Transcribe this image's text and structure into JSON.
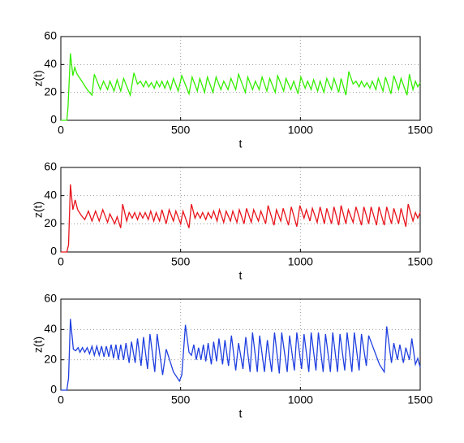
{
  "chart_data": [
    {
      "type": "line",
      "xlabel": "t",
      "ylabel": "z(t)",
      "xlim": [
        0,
        1500
      ],
      "ylim": [
        0,
        60
      ],
      "xticks": [
        0,
        500,
        1000,
        1500
      ],
      "yticks": [
        0,
        20,
        40,
        60
      ],
      "grid": true,
      "color": "#33ee00",
      "x": [
        0,
        25,
        30,
        40,
        50,
        58,
        68,
        80,
        95,
        110,
        130,
        140,
        165,
        178,
        195,
        205,
        222,
        235,
        250,
        262,
        290,
        305,
        320,
        332,
        345,
        355,
        367,
        378,
        390,
        400,
        412,
        422,
        434,
        445,
        458,
        470,
        490,
        505,
        535,
        548,
        570,
        580,
        600,
        612,
        635,
        648,
        668,
        680,
        698,
        710,
        730,
        742,
        770,
        780,
        800,
        812,
        828,
        840,
        860,
        872,
        895,
        905,
        930,
        940,
        960,
        972,
        990,
        1002,
        1020,
        1030,
        1045,
        1055,
        1072,
        1082,
        1098,
        1110,
        1130,
        1140,
        1160,
        1170,
        1190,
        1202,
        1220,
        1232,
        1245,
        1255,
        1267,
        1278,
        1290,
        1300,
        1315,
        1325,
        1345,
        1355,
        1378,
        1390,
        1410,
        1420,
        1445,
        1455,
        1470,
        1480,
        1490,
        1500
      ],
      "values": [
        0,
        0,
        10,
        48,
        32,
        38,
        33,
        30,
        26,
        22,
        18,
        33,
        22,
        28,
        22,
        28,
        21,
        29,
        21,
        30,
        18,
        34,
        26,
        28,
        24,
        28,
        24,
        27,
        23,
        28,
        24,
        28,
        23,
        28,
        22,
        30,
        21,
        32,
        19,
        31,
        21,
        30,
        20,
        31,
        20,
        31,
        22,
        28,
        22,
        30,
        22,
        33,
        20,
        31,
        22,
        28,
        22,
        31,
        21,
        30,
        20,
        32,
        21,
        30,
        22,
        28,
        19,
        31,
        23,
        28,
        22,
        29,
        21,
        28,
        20,
        30,
        22,
        30,
        20,
        30,
        18,
        35,
        26,
        28,
        24,
        28,
        24,
        27,
        23,
        28,
        22,
        30,
        21,
        31,
        19,
        32,
        22,
        30,
        18,
        33,
        22,
        28,
        24,
        27
      ]
    },
    {
      "type": "line",
      "xlabel": "t",
      "ylabel": "z(t)",
      "xlim": [
        0,
        1500
      ],
      "ylim": [
        0,
        60
      ],
      "xticks": [
        0,
        500,
        1000,
        1500
      ],
      "yticks": [
        0,
        20,
        40,
        60
      ],
      "grid": true,
      "color": "#e8141b",
      "x": [
        0,
        25,
        32,
        40,
        50,
        60,
        70,
        85,
        100,
        115,
        130,
        145,
        160,
        175,
        195,
        205,
        225,
        235,
        250,
        258,
        275,
        285,
        298,
        308,
        320,
        330,
        342,
        352,
        365,
        375,
        388,
        398,
        412,
        422,
        440,
        452,
        470,
        480,
        500,
        510,
        535,
        545,
        560,
        570,
        582,
        592,
        605,
        615,
        628,
        638,
        652,
        662,
        680,
        690,
        708,
        718,
        735,
        745,
        765,
        775,
        795,
        805,
        825,
        835,
        855,
        865,
        890,
        900,
        918,
        928,
        950,
        962,
        985,
        998,
        1015,
        1025,
        1040,
        1050,
        1070,
        1082,
        1100,
        1110,
        1130,
        1140,
        1160,
        1170,
        1190,
        1200,
        1220,
        1232,
        1255,
        1265,
        1285,
        1295,
        1318,
        1328,
        1350,
        1360,
        1380,
        1390,
        1410,
        1420,
        1440,
        1450,
        1470,
        1480,
        1490,
        1500
      ],
      "values": [
        0,
        0,
        5,
        48,
        30,
        37,
        30,
        26,
        23,
        29,
        22,
        29,
        22,
        30,
        21,
        27,
        20,
        25,
        17,
        34,
        22,
        28,
        24,
        28,
        23,
        28,
        24,
        28,
        23,
        29,
        22,
        28,
        22,
        30,
        20,
        30,
        22,
        29,
        20,
        29,
        17,
        34,
        24,
        28,
        24,
        28,
        23,
        28,
        24,
        29,
        22,
        30,
        21,
        29,
        22,
        29,
        21,
        30,
        20,
        31,
        21,
        30,
        22,
        29,
        20,
        33,
        19,
        30,
        22,
        31,
        19,
        32,
        18,
        33,
        24,
        30,
        22,
        31,
        21,
        32,
        20,
        31,
        20,
        32,
        19,
        33,
        20,
        30,
        21,
        32,
        19,
        32,
        20,
        32,
        19,
        32,
        19,
        32,
        20,
        31,
        20,
        31,
        18,
        34,
        22,
        28,
        24,
        28
      ]
    },
    {
      "type": "line",
      "xlabel": "t",
      "ylabel": "z(t)",
      "xlim": [
        0,
        1500
      ],
      "ylim": [
        0,
        60
      ],
      "xticks": [
        0,
        500,
        1000,
        1500
      ],
      "yticks": [
        0,
        20,
        40,
        60
      ],
      "grid": true,
      "color": "#1f3fe0",
      "x": [
        0,
        25,
        32,
        40,
        52,
        62,
        72,
        80,
        90,
        100,
        110,
        120,
        130,
        140,
        150,
        160,
        170,
        180,
        190,
        200,
        210,
        220,
        230,
        240,
        250,
        262,
        272,
        285,
        295,
        310,
        320,
        335,
        345,
        362,
        372,
        392,
        402,
        425,
        440,
        470,
        495,
        505,
        520,
        535,
        545,
        555,
        565,
        575,
        585,
        595,
        605,
        615,
        628,
        638,
        650,
        660,
        675,
        685,
        700,
        712,
        730,
        742,
        760,
        772,
        790,
        800,
        820,
        830,
        850,
        862,
        880,
        892,
        912,
        922,
        945,
        955,
        975,
        985,
        1005,
        1015,
        1035,
        1045,
        1065,
        1075,
        1095,
        1105,
        1125,
        1135,
        1155,
        1165,
        1185,
        1195,
        1215,
        1225,
        1245,
        1255,
        1275,
        1285,
        1330,
        1350,
        1360,
        1380,
        1390,
        1405,
        1415,
        1430,
        1440,
        1455,
        1465,
        1480,
        1490,
        1500
      ],
      "values": [
        0,
        0,
        8,
        47,
        27,
        26,
        28,
        25,
        28,
        25,
        28,
        24,
        29,
        23,
        29,
        23,
        29,
        22,
        29,
        22,
        30,
        21,
        30,
        20,
        30,
        20,
        31,
        18,
        32,
        18,
        34,
        16,
        35,
        14,
        37,
        12,
        37,
        10,
        27,
        12,
        6,
        10,
        43,
        25,
        23,
        30,
        20,
        28,
        20,
        30,
        19,
        31,
        17,
        32,
        19,
        34,
        17,
        33,
        16,
        36,
        13,
        31,
        14,
        35,
        12,
        38,
        12,
        36,
        12,
        33,
        12,
        38,
        11,
        38,
        12,
        36,
        13,
        38,
        14,
        37,
        12,
        38,
        13,
        38,
        12,
        37,
        12,
        38,
        12,
        37,
        13,
        38,
        12,
        38,
        13,
        37,
        16,
        36,
        17,
        12,
        42,
        18,
        31,
        20,
        30,
        18,
        28,
        20,
        34,
        17,
        21,
        15
      ]
    }
  ]
}
